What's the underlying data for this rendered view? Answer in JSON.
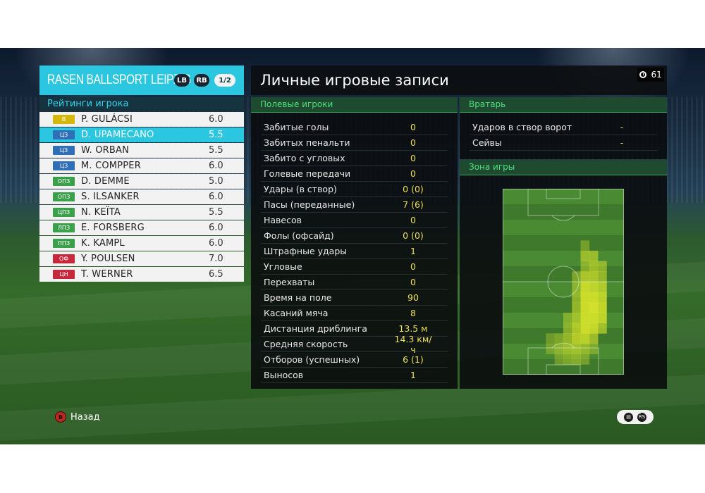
{
  "team": {
    "name": "RASEN BALLSPORT LEIPZIG",
    "badge_lb": "LB",
    "badge_rb": "RB",
    "page": "1/2",
    "ratings_title": "Рейтинги игрока"
  },
  "players": [
    {
      "pos": "В",
      "pos_color": "#d6b80d",
      "name": "P. GULÁCSI",
      "rating": "6.0"
    },
    {
      "pos": "ЦЗ",
      "pos_color": "#2f6fb8",
      "name": "D. UPAMECANO",
      "rating": "5.5",
      "selected": true
    },
    {
      "pos": "ЦЗ",
      "pos_color": "#2f6fb8",
      "name": "W. ORBAN",
      "rating": "5.5"
    },
    {
      "pos": "ЦЗ",
      "pos_color": "#2f6fb8",
      "name": "M. COMPPER",
      "rating": "6.0"
    },
    {
      "pos": "ОПЗ",
      "pos_color": "#3aa04a",
      "name": "D. DEMME",
      "rating": "5.0"
    },
    {
      "pos": "ОПЗ",
      "pos_color": "#3aa04a",
      "name": "S. ILSANKER",
      "rating": "6.0"
    },
    {
      "pos": "ЦПЗ",
      "pos_color": "#3aa04a",
      "name": "N. KEÏTA",
      "rating": "5.5"
    },
    {
      "pos": "ЛПЗ",
      "pos_color": "#3aa04a",
      "name": "E. FORSBERG",
      "rating": "6.0"
    },
    {
      "pos": "ППЗ",
      "pos_color": "#3aa04a",
      "name": "K. KAMPL",
      "rating": "6.0"
    },
    {
      "pos": "ОФ",
      "pos_color": "#c8283c",
      "name": "Y. POULSEN",
      "rating": "7.0"
    },
    {
      "pos": "ЦН",
      "pos_color": "#c8283c",
      "name": "T. WERNER",
      "rating": "6.5"
    }
  ],
  "main": {
    "title": "Личные игровые записи",
    "timer": "61"
  },
  "field_players": {
    "title": "Полевые игроки",
    "stats": [
      {
        "label": "Забитые голы",
        "value": "0"
      },
      {
        "label": "Забитых пенальти",
        "value": "0"
      },
      {
        "label": "Забито с угловых",
        "value": "0"
      },
      {
        "label": "Голевые передачи",
        "value": "0"
      },
      {
        "label": "Удары (в створ)",
        "value": "0 (0)"
      },
      {
        "label": "Пасы (переданные)",
        "value": "7 (6)"
      },
      {
        "label": "Навесов",
        "value": "0"
      },
      {
        "label": "Фолы (офсайд)",
        "value": "0 (0)"
      },
      {
        "label": "Штрафные удары",
        "value": "1"
      },
      {
        "label": "Угловые",
        "value": "0"
      },
      {
        "label": "Перехваты",
        "value": "0"
      },
      {
        "label": "Время на поле",
        "value": "90"
      },
      {
        "label": "Касаний мяча",
        "value": "8"
      },
      {
        "label": "Дистанция дриблинга",
        "value": "13.5 м"
      },
      {
        "label": "Средняя скорость",
        "value": "14.3 км/ч"
      },
      {
        "label": "Отборов (успешных)",
        "value": "6 (1)"
      },
      {
        "label": "Выносов",
        "value": "1"
      }
    ]
  },
  "goalkeeper": {
    "title": "Вратарь",
    "stats": [
      {
        "label": "Ударов в створ ворот",
        "value": "-"
      },
      {
        "label": "Сейвы",
        "value": "-"
      }
    ]
  },
  "zone": {
    "title": "Зона игры",
    "heat_color": "#d9e62a",
    "heat_cells": [
      [
        5,
        9,
        0.35
      ],
      [
        6,
        9,
        0.55
      ],
      [
        6,
        10,
        0.55
      ],
      [
        7,
        9,
        0.45
      ],
      [
        7,
        10,
        0.6
      ],
      [
        7,
        11,
        0.5
      ],
      [
        8,
        8,
        0.4
      ],
      [
        8,
        9,
        0.7
      ],
      [
        8,
        10,
        0.7
      ],
      [
        8,
        11,
        0.55
      ],
      [
        9,
        8,
        0.45
      ],
      [
        9,
        9,
        0.85
      ],
      [
        9,
        10,
        0.8
      ],
      [
        9,
        11,
        0.7
      ],
      [
        10,
        8,
        0.5
      ],
      [
        10,
        9,
        0.9
      ],
      [
        10,
        10,
        0.9
      ],
      [
        10,
        11,
        0.8
      ],
      [
        11,
        8,
        0.55
      ],
      [
        11,
        9,
        0.9
      ],
      [
        11,
        10,
        0.95
      ],
      [
        11,
        11,
        0.85
      ],
      [
        12,
        7,
        0.4
      ],
      [
        12,
        8,
        0.6
      ],
      [
        12,
        9,
        0.9
      ],
      [
        12,
        10,
        0.9
      ],
      [
        12,
        11,
        0.8
      ],
      [
        13,
        7,
        0.45
      ],
      [
        13,
        8,
        0.7
      ],
      [
        13,
        9,
        0.9
      ],
      [
        13,
        10,
        0.85
      ],
      [
        13,
        11,
        0.6
      ],
      [
        14,
        5,
        0.3
      ],
      [
        14,
        6,
        0.4
      ],
      [
        14,
        7,
        0.55
      ],
      [
        14,
        8,
        0.75
      ],
      [
        14,
        9,
        0.8
      ],
      [
        14,
        10,
        0.6
      ],
      [
        15,
        5,
        0.3
      ],
      [
        15,
        6,
        0.45
      ],
      [
        15,
        7,
        0.55
      ],
      [
        15,
        8,
        0.6
      ],
      [
        15,
        9,
        0.5
      ],
      [
        15,
        10,
        0.35
      ],
      [
        16,
        6,
        0.3
      ],
      [
        16,
        7,
        0.4
      ],
      [
        16,
        8,
        0.45
      ],
      [
        16,
        9,
        0.35
      ]
    ]
  },
  "footer": {
    "back_button": "B",
    "back_label": "Назад",
    "icon_a": "chat-icon",
    "icon_b": "rs-button-icon",
    "rs_label": "R̄S"
  }
}
